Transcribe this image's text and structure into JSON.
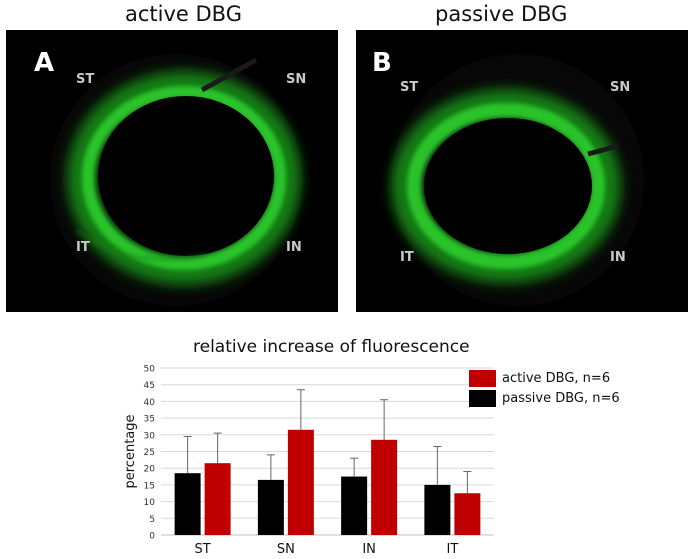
{
  "panels": [
    {
      "title": "active DBG",
      "letter": "A",
      "labels": {
        "st": "ST",
        "sn": "SN",
        "it": "IT",
        "in": "IN"
      }
    },
    {
      "title": "passive DBG",
      "letter": "B",
      "labels": {
        "st": "ST",
        "sn": "SN",
        "it": "IT",
        "in": "IN"
      }
    }
  ],
  "colors": {
    "active": "#c00000",
    "passive": "#000000",
    "fluorescence": "#2fd12f"
  },
  "chart_data": {
    "type": "bar",
    "title": "relative increase of fluorescence",
    "xlabel": "",
    "ylabel": "percentage",
    "ylim": [
      0,
      50
    ],
    "yticks": [
      0,
      5,
      10,
      15,
      20,
      25,
      30,
      35,
      40,
      45,
      50
    ],
    "grid": true,
    "legend_position": "top-right",
    "categories": [
      "ST",
      "SN",
      "IN",
      "IT"
    ],
    "series": [
      {
        "name": "passive DBG, n=6",
        "color": "#000000",
        "values": [
          18.5,
          16.5,
          17.5,
          15
        ],
        "errors": [
          11,
          7.5,
          5.5,
          11.5
        ]
      },
      {
        "name": "active DBG, n=6",
        "color": "#c00000",
        "values": [
          21.5,
          31.5,
          28.5,
          12.5
        ],
        "errors": [
          9,
          12,
          12,
          6.5
        ]
      }
    ],
    "legend_order": [
      "active DBG, n=6",
      "passive DBG, n=6"
    ]
  }
}
